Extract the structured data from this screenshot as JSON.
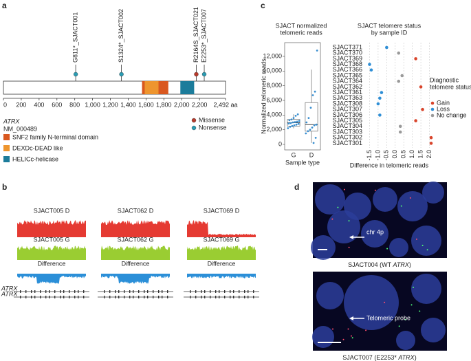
{
  "panel_labels": [
    "a",
    "b",
    "c",
    "d"
  ],
  "chart_data": [
    {
      "type": "lollipop",
      "xlim": [
        0,
        2492
      ],
      "xticks": [
        0,
        200,
        400,
        600,
        800,
        {
          "value": 1000,
          "label": "1,000"
        },
        {
          "value": 1200,
          "label": "1,200"
        },
        {
          "value": 1400,
          "label": "1,400"
        },
        {
          "value": 1600,
          "label": "1,600"
        },
        {
          "value": 1800,
          "label": "1,800"
        },
        {
          "value": 2000,
          "label": "2,000"
        },
        {
          "value": 2200,
          "label": "2,200"
        },
        {
          "value": 2492,
          "label": "2,492 aa"
        }
      ],
      "gene": "ATRX",
      "transcript": "NM_000489",
      "mutations": {
        "labels": [
          "G811*_SJACT001",
          "S1324*_SJACT002",
          "R2164S_SJACT021",
          "E2253*_SJACT007"
        ],
        "positions": [
          811,
          1324,
          2164,
          2253
        ],
        "types": [
          "Nonsense",
          "Nonsense",
          "Missense",
          "Nonsense"
        ]
      },
      "mutation_legend": [
        {
          "name": "Missense",
          "color": "#b83a2b"
        },
        {
          "name": "Nonsense",
          "color": "#2a9cb3"
        }
      ],
      "domains": [
        {
          "name": "SNF2 family N-terminal domain",
          "color": "#d9581f",
          "start": 1555,
          "end": 1850
        },
        {
          "name": "DEXDc-DEAD like",
          "color": "#ee952e",
          "start": 1585,
          "end": 1740
        },
        {
          "name": "HELICc-helicase",
          "color": "#1c7c9b",
          "start": 1985,
          "end": 2140
        }
      ]
    },
    {
      "type": "box",
      "title": [
        "SJACT normalized",
        "telomeric reads"
      ],
      "y_label": "Normalized telomeric reads",
      "x_label": "Sample type",
      "categories": [
        "G",
        "D"
      ],
      "ylim": [
        -750,
        13875
      ],
      "yticks": [
        0,
        {
          "value": 2000,
          "label": "2,000"
        },
        {
          "value": 4000,
          "label": "4,000"
        },
        {
          "value": 6000,
          "label": "6,000"
        },
        {
          "value": 8000,
          "label": "8,000"
        },
        {
          "value": 10000,
          "label": "10,000"
        },
        {
          "value": 12000,
          "label": "12,000"
        }
      ],
      "whisker_low": [
        2200,
        200
      ],
      "q1": [
        2500,
        1800
      ],
      "median": [
        2950,
        2700
      ],
      "q3": [
        3400,
        5700
      ],
      "whisker_high": [
        4100,
        10200
      ],
      "points": [
        [
          2200,
          2400,
          2500,
          2600,
          2700,
          2800,
          2850,
          2900,
          3000,
          3050,
          3100,
          3200,
          3300,
          3400,
          3600,
          3900,
          4100
        ],
        [
          200,
          900,
          1500,
          1800,
          2000,
          2300,
          2600,
          2700,
          3000,
          3600,
          5000,
          6700,
          7200,
          12800
        ]
      ],
      "color": "#3a8fd0"
    },
    {
      "type": "dot",
      "title": [
        "SJACT telomere status",
        "by sample ID"
      ],
      "x_label": "Difference in telomeric reads",
      "categories": [
        "SJACT371",
        "SJACT370",
        "SJACT369",
        "SJACT368",
        "SJACT366",
        "SJACT365",
        "SJACT364",
        "SJACT362",
        "SJACT361",
        "SJACT363",
        "SJACT308",
        "SJACT307",
        "SJACT306",
        "SJACT305",
        "SJACT304",
        "SJACT303",
        "SJACT302",
        "SJACT301"
      ],
      "xlim": [
        -1.8,
        2.3
      ],
      "xticks": [
        -1.5,
        {
          "value": -1,
          "label": "-1.0"
        },
        -0.5,
        {
          "value": 0,
          "label": "0.0"
        },
        0.5,
        {
          "value": 1,
          "label": "1.0"
        },
        1.5,
        {
          "value": 2,
          "label": "2.0"
        }
      ],
      "grid": true,
      "legend_title": [
        "Diagnostic",
        "telomere status"
      ],
      "series": [
        {
          "name": "Gain",
          "color": "#d9442b",
          "values": [
            null,
            null,
            1.2,
            null,
            null,
            null,
            null,
            1.5,
            null,
            null,
            null,
            1.6,
            null,
            1.2,
            null,
            null,
            2.1,
            2.1
          ]
        },
        {
          "name": "Loss",
          "color": "#2f8fd6",
          "values": [
            -0.5,
            null,
            null,
            -1.5,
            -1.4,
            null,
            null,
            null,
            -0.8,
            -0.9,
            -1.0,
            null,
            -0.9,
            null,
            null,
            null,
            null,
            null
          ]
        },
        {
          "name": "No change",
          "color": "#9a9a9a",
          "values": [
            null,
            0.2,
            null,
            null,
            null,
            0.4,
            0.2,
            null,
            null,
            null,
            null,
            null,
            null,
            null,
            0.3,
            0.3,
            null,
            null
          ]
        }
      ]
    }
  ],
  "panel_b": {
    "samples": [
      {
        "d_label": "SJACT005 D",
        "g_label": "SJACT005 G"
      },
      {
        "d_label": "SJACT062 D",
        "g_label": "SJACT062 G"
      },
      {
        "d_label": "SJACT069 D",
        "g_label": "SJACT069 G"
      }
    ],
    "difference_label": "Difference",
    "gene": "ATRX"
  },
  "panel_d": {
    "images": [
      {
        "caption": [
          "SJACT004 (WT ",
          "ATRX",
          ")"
        ],
        "annotation": "chr 4p"
      },
      {
        "caption": [
          "SJACT007 (E2253* ",
          "ATRX",
          ")"
        ],
        "annotation": "Telomeric probe"
      }
    ]
  }
}
